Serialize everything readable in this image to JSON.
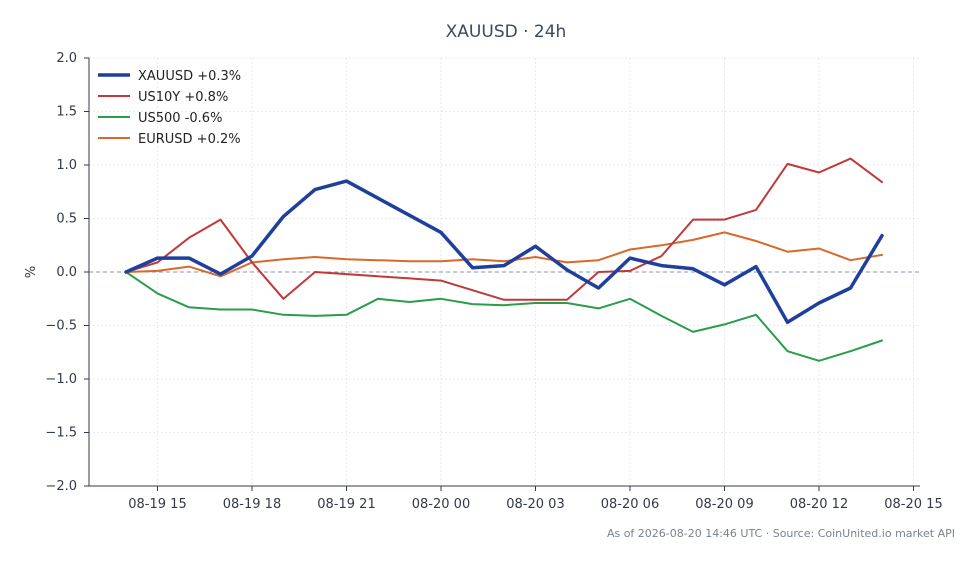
{
  "chart_data": {
    "type": "line",
    "title": "XAUUSD · 24h",
    "xlabel": "",
    "ylabel": "%",
    "ylim": [
      -2.0,
      2.0
    ],
    "yticks": [
      "2.0",
      "1.5",
      "1.0",
      "0.5",
      "0.0",
      "−0.5",
      "−1.0",
      "−1.5",
      "−2.0"
    ],
    "xticks": [
      "08-19 15",
      "08-19 18",
      "08-19 21",
      "08-20 00",
      "08-20 03",
      "08-20 06",
      "08-20 09",
      "08-20 12",
      "08-20 15"
    ],
    "x": [
      "08-19 14",
      "08-19 15",
      "08-19 16",
      "08-19 17",
      "08-19 18",
      "08-19 19",
      "08-19 20",
      "08-19 21",
      "08-19 22",
      "08-19 23",
      "08-20 00",
      "08-20 01",
      "08-20 02",
      "08-20 03",
      "08-20 04",
      "08-20 05",
      "08-20 06",
      "08-20 07",
      "08-20 08",
      "08-20 09",
      "08-20 10",
      "08-20 11",
      "08-20 12",
      "08-20 13",
      "08-20 14"
    ],
    "grid": true,
    "legend_position": "top-left",
    "series": [
      {
        "name": "XAUUSD +0.3%",
        "color": "#1f3f9c",
        "width": 3.5,
        "values": [
          0.0,
          0.13,
          0.13,
          -0.02,
          0.15,
          0.52,
          0.77,
          0.85,
          0.69,
          0.53,
          0.37,
          0.04,
          0.06,
          0.24,
          0.02,
          -0.15,
          0.13,
          0.06,
          0.03,
          -0.12,
          0.05,
          -0.47,
          -0.29,
          -0.15,
          0.34
        ]
      },
      {
        "name": "US10Y +0.8%",
        "color": "#c23838",
        "width": 2,
        "values": [
          0.0,
          0.09,
          0.32,
          0.49,
          0.09,
          -0.25,
          0.0,
          -0.02,
          -0.04,
          -0.06,
          -0.08,
          -0.17,
          -0.26,
          -0.26,
          -0.26,
          0.0,
          0.01,
          0.15,
          0.49,
          0.49,
          0.58,
          1.01,
          0.93,
          1.06,
          0.84
        ]
      },
      {
        "name": "US500 -0.6%",
        "color": "#2a9d4a",
        "width": 2,
        "values": [
          0.0,
          -0.2,
          -0.33,
          -0.35,
          -0.35,
          -0.4,
          -0.41,
          -0.4,
          -0.25,
          -0.28,
          -0.25,
          -0.3,
          -0.31,
          -0.29,
          -0.29,
          -0.34,
          -0.25,
          -0.41,
          -0.56,
          -0.49,
          -0.4,
          -0.74,
          -0.83,
          -0.74,
          -0.64
        ]
      },
      {
        "name": "EURUSD +0.2%",
        "color": "#d9682a",
        "width": 2,
        "values": [
          0.0,
          0.01,
          0.05,
          -0.04,
          0.09,
          0.12,
          0.14,
          0.12,
          0.11,
          0.1,
          0.1,
          0.12,
          0.1,
          0.14,
          0.09,
          0.11,
          0.21,
          0.25,
          0.3,
          0.37,
          0.29,
          0.19,
          0.22,
          0.11,
          0.16
        ]
      }
    ]
  },
  "footer": "As of 2026-08-20 14:46 UTC · Source: CoinUnited.io market API"
}
